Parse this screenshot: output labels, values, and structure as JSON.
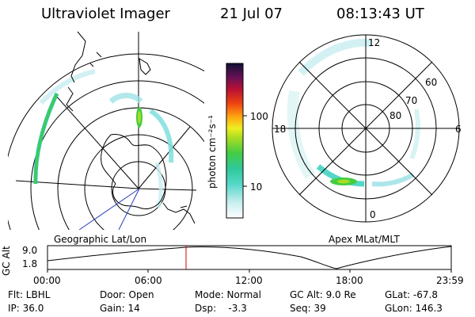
{
  "header": {
    "title": "Ultraviolet Imager",
    "date": "21 Jul 07",
    "time": "08:13:43 UT"
  },
  "left_panel": {
    "label": "Geographic Lat/Lon"
  },
  "right_panel": {
    "label": "Apex MLat/MLT",
    "mlt_labels": {
      "top": "12",
      "bottom": "0",
      "left": "18",
      "right": "6"
    },
    "lat_labels": [
      "60",
      "70",
      "80"
    ]
  },
  "colorbar": {
    "unit": "photon cm⁻²s⁻¹",
    "tick_100": "100",
    "tick_10": "10"
  },
  "altitude_plot": {
    "axis_label": "GC Alt",
    "y_ticks": [
      "9.0",
      "1.8"
    ],
    "x_ticks": [
      "00:00",
      "06:00",
      "12:00",
      "18:00",
      "23:59"
    ],
    "marker_color": "#cc0000"
  },
  "info": {
    "flt": "Flt: LBHL",
    "door": "Door: Open",
    "mode": "Mode: Normal",
    "gc_alt": "GC Alt: 9.0 Re",
    "glat": "GLat: -67.8",
    "ip": "IP: 36.0",
    "gain": "Gain: 14",
    "dsp": "Dsp:    -3.3",
    "seq": "Seq: 39",
    "glon": "GLon: 146.3"
  }
}
